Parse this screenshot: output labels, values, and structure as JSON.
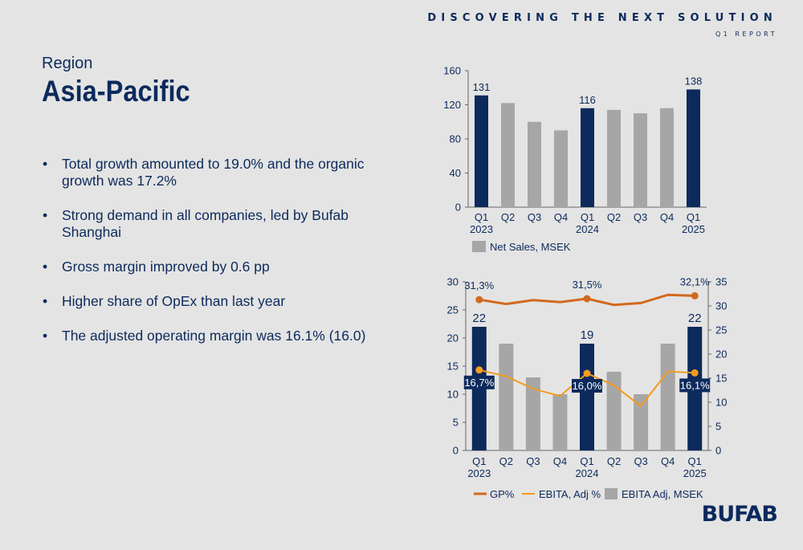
{
  "header": {
    "tagline": "DISCOVERING THE NEXT SOLUTION",
    "subtag": "Q1 REPORT"
  },
  "region": {
    "label": "Region",
    "title": "Asia-Pacific"
  },
  "bullets": [
    "Total growth amounted to 19.0% and the organic growth was 17.2%",
    "Strong demand in all companies, led by Bufab Shanghai",
    "Gross margin improved by 0.6 pp",
    "Higher share of OpEx than last year",
    "The adjusted operating margin was 16.1% (16.0)"
  ],
  "logo": "BUFAB",
  "colors": {
    "navy": "#0c2a5c",
    "gray": "#a6a6a6",
    "gp_line": "#d2691e",
    "ebita_line": "#f39c1f"
  },
  "chart_data": [
    {
      "type": "bar",
      "categories": [
        "Q1 2023",
        "Q2",
        "Q3",
        "Q4",
        "Q1 2024",
        "Q2",
        "Q3",
        "Q4",
        "Q1 2025"
      ],
      "tick_labels": [
        [
          "Q1",
          "2023"
        ],
        [
          "Q2"
        ],
        [
          "Q3"
        ],
        [
          "Q4"
        ],
        [
          "Q1",
          "2024"
        ],
        [
          "Q2"
        ],
        [
          "Q3"
        ],
        [
          "Q4"
        ],
        [
          "Q1",
          "2025"
        ]
      ],
      "series": [
        {
          "name": "Net Sales, MSEK",
          "values": [
            131,
            122,
            100,
            90,
            116,
            114,
            110,
            116,
            138
          ]
        }
      ],
      "highlight_indices": [
        0,
        4,
        8
      ],
      "data_labels": [
        "131",
        "",
        "",
        "",
        "116",
        "",
        "",
        "",
        "138"
      ],
      "yticks": [
        0,
        40,
        80,
        120,
        160
      ],
      "ylim": [
        0,
        160
      ],
      "legend_position": "bottom"
    },
    {
      "type": "bar",
      "categories": [
        "Q1 2023",
        "Q2",
        "Q3",
        "Q4",
        "Q1 2024",
        "Q2",
        "Q3",
        "Q4",
        "Q1 2025"
      ],
      "tick_labels": [
        [
          "Q1",
          "2023"
        ],
        [
          "Q2"
        ],
        [
          "Q3"
        ],
        [
          "Q4"
        ],
        [
          "Q1",
          "2024"
        ],
        [
          "Q2"
        ],
        [
          "Q3"
        ],
        [
          "Q4"
        ],
        [
          "Q1",
          "2025"
        ]
      ],
      "series": [
        {
          "name": "EBITA Adj, MSEK",
          "kind": "bar",
          "axis": "left",
          "values": [
            22,
            19,
            13,
            10,
            19,
            14,
            10,
            19,
            22
          ]
        },
        {
          "name": "GP%",
          "kind": "line",
          "axis": "right",
          "values": [
            31.3,
            30.4,
            31.2,
            30.8,
            31.5,
            30.2,
            30.6,
            32.3,
            32.1
          ]
        },
        {
          "name": "EBITA, Adj %",
          "kind": "line",
          "axis": "right",
          "values": [
            16.7,
            15.4,
            12.8,
            11.3,
            16.0,
            13.5,
            9.2,
            16.4,
            16.1
          ]
        }
      ],
      "highlight_indices": [
        0,
        4,
        8
      ],
      "bar_labels": [
        "22",
        "",
        "",
        "",
        "19",
        "",
        "",
        "",
        "22"
      ],
      "gp_labels": [
        "31,3%",
        "",
        "",
        "",
        "31,5%",
        "",
        "",
        "",
        "32,1%"
      ],
      "ebita_labels": [
        "16,7%",
        "",
        "",
        "",
        "16,0%",
        "",
        "",
        "",
        "16,1%"
      ],
      "yticks_left": [
        0,
        5,
        10,
        15,
        20,
        25,
        30
      ],
      "ylim_left": [
        0,
        30
      ],
      "yticks_right": [
        0,
        5,
        10,
        15,
        20,
        25,
        30,
        35
      ],
      "ylim_right": [
        0,
        35
      ],
      "legend_position": "bottom"
    }
  ]
}
